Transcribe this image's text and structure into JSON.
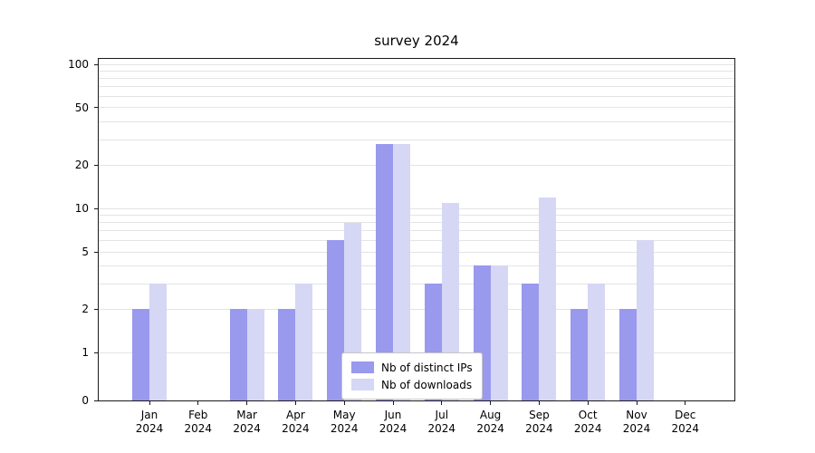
{
  "chart_data": {
    "type": "bar",
    "title": "survey 2024",
    "categories": [
      "Jan 2024",
      "Feb 2024",
      "Mar 2024",
      "Apr 2024",
      "May 2024",
      "Jun 2024",
      "Jul 2024",
      "Aug 2024",
      "Sep 2024",
      "Oct 2024",
      "Nov 2024",
      "Dec 2024"
    ],
    "series": [
      {
        "name": "Nb of distinct IPs",
        "color": "#9999ee",
        "values": [
          2,
          0,
          2,
          2,
          6,
          28,
          3,
          4,
          3,
          2,
          2,
          0
        ]
      },
      {
        "name": "Nb of downloads",
        "color": "#d6d6f5",
        "values": [
          3,
          0,
          2,
          3,
          8,
          28,
          11,
          4,
          12,
          3,
          6,
          0
        ]
      }
    ],
    "xlabel": "",
    "ylabel": "",
    "yscale": "symlog",
    "ylim": [
      0,
      109
    ],
    "y_ticks": [
      0,
      1,
      2,
      5,
      10,
      20,
      50,
      100
    ],
    "grid": "horizontal-log-minor",
    "legend_position": "lower-center-inside"
  },
  "colors": {
    "background": "#ffffff",
    "grid": "#e4e4e4",
    "axis": "#1a1a1a",
    "legend_border": "#c6c6c6",
    "text": "#000000"
  }
}
